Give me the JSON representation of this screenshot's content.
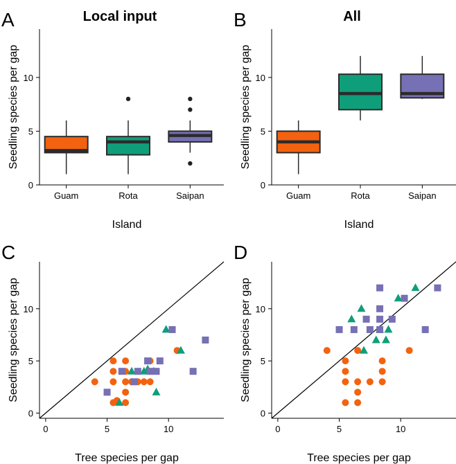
{
  "colors": {
    "Guam": "#f3620f",
    "Rota": "#0f9e7a",
    "Saipan": "#7670b4",
    "box_outline": "#2b2b2b"
  },
  "chart_data": [
    {
      "type": "box",
      "panel_letter": "A",
      "title": "Local input",
      "xlabel": "Island",
      "ylabel": "Seedling species per gap",
      "categories": [
        "Guam",
        "Rota",
        "Saipan"
      ],
      "yticks": [
        0,
        5,
        10
      ],
      "ylim": [
        0,
        14.5
      ],
      "boxes": [
        {
          "name": "Guam",
          "min": 1,
          "q1": 3,
          "median": 3.2,
          "q3": 4.5,
          "max": 6,
          "outliers": []
        },
        {
          "name": "Rota",
          "min": 1,
          "q1": 2.8,
          "median": 4,
          "q3": 4.5,
          "max": 6,
          "outliers": [
            8
          ]
        },
        {
          "name": "Saipan",
          "min": 3,
          "q1": 4,
          "median": 4.6,
          "q3": 5,
          "max": 6,
          "outliers": [
            2,
            7,
            8
          ]
        }
      ]
    },
    {
      "type": "box",
      "panel_letter": "B",
      "title": "All",
      "xlabel": "Island",
      "ylabel": "Seedling species per gap",
      "categories": [
        "Guam",
        "Rota",
        "Saipan"
      ],
      "yticks": [
        0,
        5,
        10
      ],
      "ylim": [
        0,
        14.5
      ],
      "boxes": [
        {
          "name": "Guam",
          "min": 1,
          "q1": 3,
          "median": 4,
          "q3": 5,
          "max": 6,
          "outliers": []
        },
        {
          "name": "Rota",
          "min": 6,
          "q1": 7,
          "median": 8.5,
          "q3": 10.3,
          "max": 12,
          "outliers": []
        },
        {
          "name": "Saipan",
          "min": 8,
          "q1": 8.1,
          "median": 8.5,
          "q3": 10.3,
          "max": 12,
          "outliers": []
        }
      ]
    },
    {
      "type": "scatter",
      "panel_letter": "C",
      "xlabel": "Tree species per gap",
      "ylabel": "Seedling species per gap",
      "xticks": [
        0,
        5,
        10
      ],
      "yticks": [
        0,
        5,
        10
      ],
      "xlim": [
        -0.5,
        14.5
      ],
      "ylim": [
        -0.5,
        14.5
      ],
      "reference_line": "y = x",
      "series": [
        {
          "name": "Guam",
          "marker": "circle",
          "points": [
            [
              4,
              3
            ],
            [
              5.5,
              5
            ],
            [
              5.5,
              4
            ],
            [
              5.5,
              3
            ],
            [
              5.5,
              1
            ],
            [
              5.8,
              1.2
            ],
            [
              6.5,
              5
            ],
            [
              6.5,
              4
            ],
            [
              6.5,
              3
            ],
            [
              6.5,
              2
            ],
            [
              6.5,
              1
            ],
            [
              7,
              3
            ],
            [
              7.5,
              3
            ],
            [
              8,
              3
            ],
            [
              8.5,
              5
            ],
            [
              8.5,
              4
            ],
            [
              8.5,
              3
            ],
            [
              10.7,
              6
            ]
          ]
        },
        {
          "name": "Rota",
          "marker": "triangle",
          "points": [
            [
              6,
              1
            ],
            [
              7,
              4
            ],
            [
              8,
              4
            ],
            [
              8.3,
              4.2
            ],
            [
              8.8,
              4
            ],
            [
              9,
              2
            ],
            [
              9.8,
              8
            ],
            [
              11,
              6
            ]
          ]
        },
        {
          "name": "Saipan",
          "marker": "square",
          "points": [
            [
              5,
              2
            ],
            [
              6.2,
              4
            ],
            [
              7.2,
              3
            ],
            [
              7.5,
              4
            ],
            [
              8.3,
              5
            ],
            [
              8.5,
              4
            ],
            [
              9,
              4
            ],
            [
              9.3,
              5
            ],
            [
              10.3,
              8
            ],
            [
              12,
              4
            ],
            [
              13,
              7
            ]
          ]
        }
      ]
    },
    {
      "type": "scatter",
      "panel_letter": "D",
      "xlabel": "Tree species per gap",
      "ylabel": "Seedling species per gap",
      "xticks": [
        0,
        5,
        10
      ],
      "yticks": [
        0,
        5,
        10
      ],
      "xlim": [
        -0.5,
        14.5
      ],
      "ylim": [
        -0.5,
        14.5
      ],
      "reference_line": "y = x",
      "series": [
        {
          "name": "Guam",
          "marker": "circle",
          "points": [
            [
              4,
              6
            ],
            [
              5.5,
              5
            ],
            [
              5.5,
              4
            ],
            [
              5.5,
              3
            ],
            [
              5.5,
              1
            ],
            [
              6.5,
              6
            ],
            [
              6.5,
              3
            ],
            [
              6.5,
              2
            ],
            [
              6.5,
              1
            ],
            [
              7.5,
              3
            ],
            [
              8.5,
              5
            ],
            [
              8.5,
              4
            ],
            [
              8.5,
              3
            ],
            [
              10.7,
              6
            ]
          ]
        },
        {
          "name": "Rota",
          "marker": "triangle",
          "points": [
            [
              6,
              9
            ],
            [
              6.8,
              10
            ],
            [
              7,
              6
            ],
            [
              8,
              7
            ],
            [
              8.3,
              8
            ],
            [
              8.8,
              7
            ],
            [
              9,
              8
            ],
            [
              9.8,
              11
            ],
            [
              11.2,
              12
            ]
          ]
        },
        {
          "name": "Saipan",
          "marker": "square",
          "points": [
            [
              5,
              8
            ],
            [
              6.2,
              8
            ],
            [
              7.2,
              9
            ],
            [
              7.5,
              8
            ],
            [
              8.3,
              12
            ],
            [
              8.3,
              10
            ],
            [
              8.3,
              9
            ],
            [
              8.3,
              8
            ],
            [
              9.3,
              9
            ],
            [
              10.3,
              11
            ],
            [
              12,
              8
            ],
            [
              13,
              12
            ]
          ]
        }
      ]
    }
  ]
}
